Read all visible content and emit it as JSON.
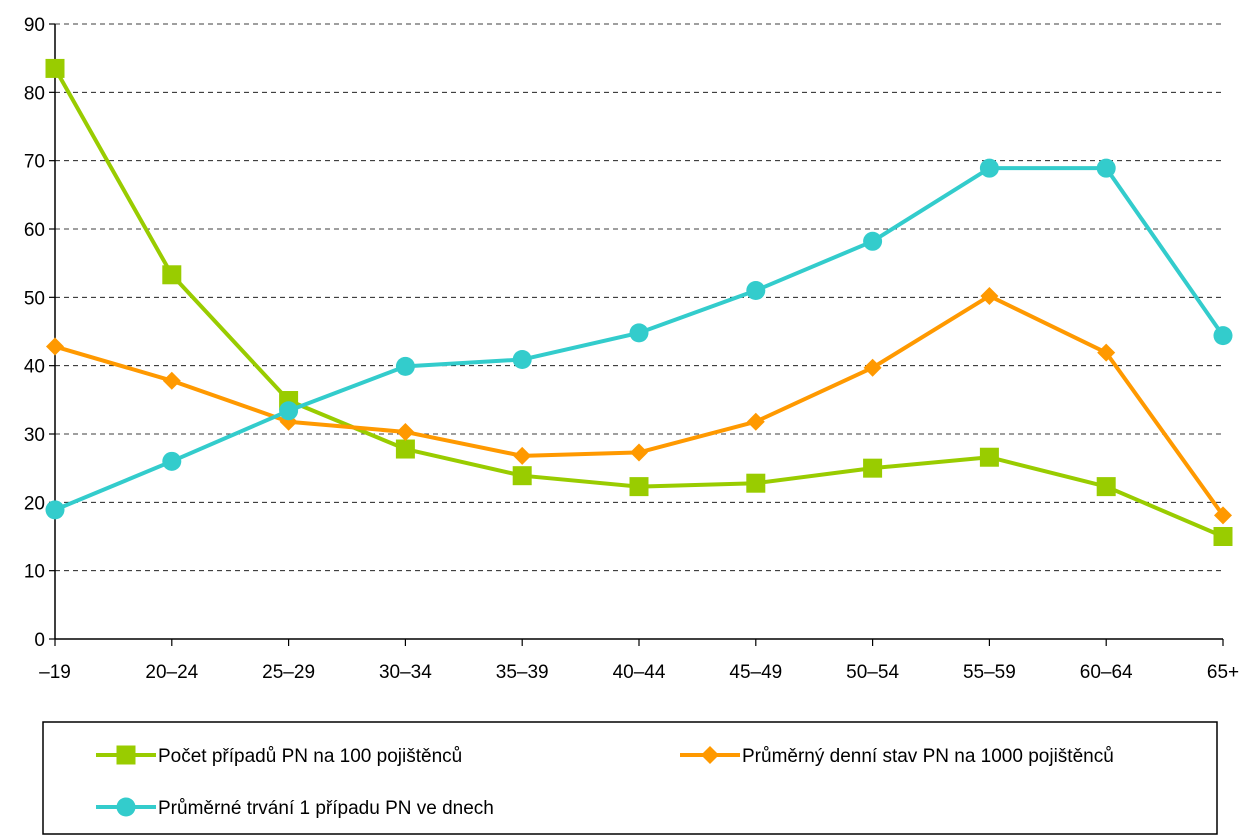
{
  "chart_data": {
    "type": "line",
    "categories": [
      "–19",
      "20–24",
      "25–29",
      "30–34",
      "35–39",
      "40–44",
      "45–49",
      "50–54",
      "55–59",
      "60–64",
      "65+"
    ],
    "ylim": [
      0,
      90
    ],
    "yticks": [
      0,
      10,
      20,
      30,
      40,
      50,
      60,
      70,
      80,
      90
    ],
    "grid": true,
    "legend_position": "bottom",
    "series": [
      {
        "name": "Počet případů PN na 100 pojištěnců",
        "marker": "square",
        "color": "#99cc00",
        "values": [
          83.5,
          53.3,
          34.9,
          27.8,
          23.9,
          22.3,
          22.8,
          25.0,
          26.6,
          22.3,
          15.0
        ]
      },
      {
        "name": "Průměrný denní stav PN na 1000 pojištěnců",
        "marker": "diamond",
        "color": "#ff9900",
        "values": [
          42.8,
          37.8,
          31.8,
          30.3,
          26.8,
          27.3,
          31.8,
          39.7,
          50.2,
          41.9,
          18.1
        ]
      },
      {
        "name": "Průměrné trvání 1 případu PN ve dnech",
        "marker": "circle",
        "color": "#33cccc",
        "values": [
          18.9,
          26.0,
          33.4,
          39.9,
          40.9,
          44.8,
          51.0,
          58.2,
          68.9,
          68.9,
          44.4
        ]
      }
    ]
  }
}
